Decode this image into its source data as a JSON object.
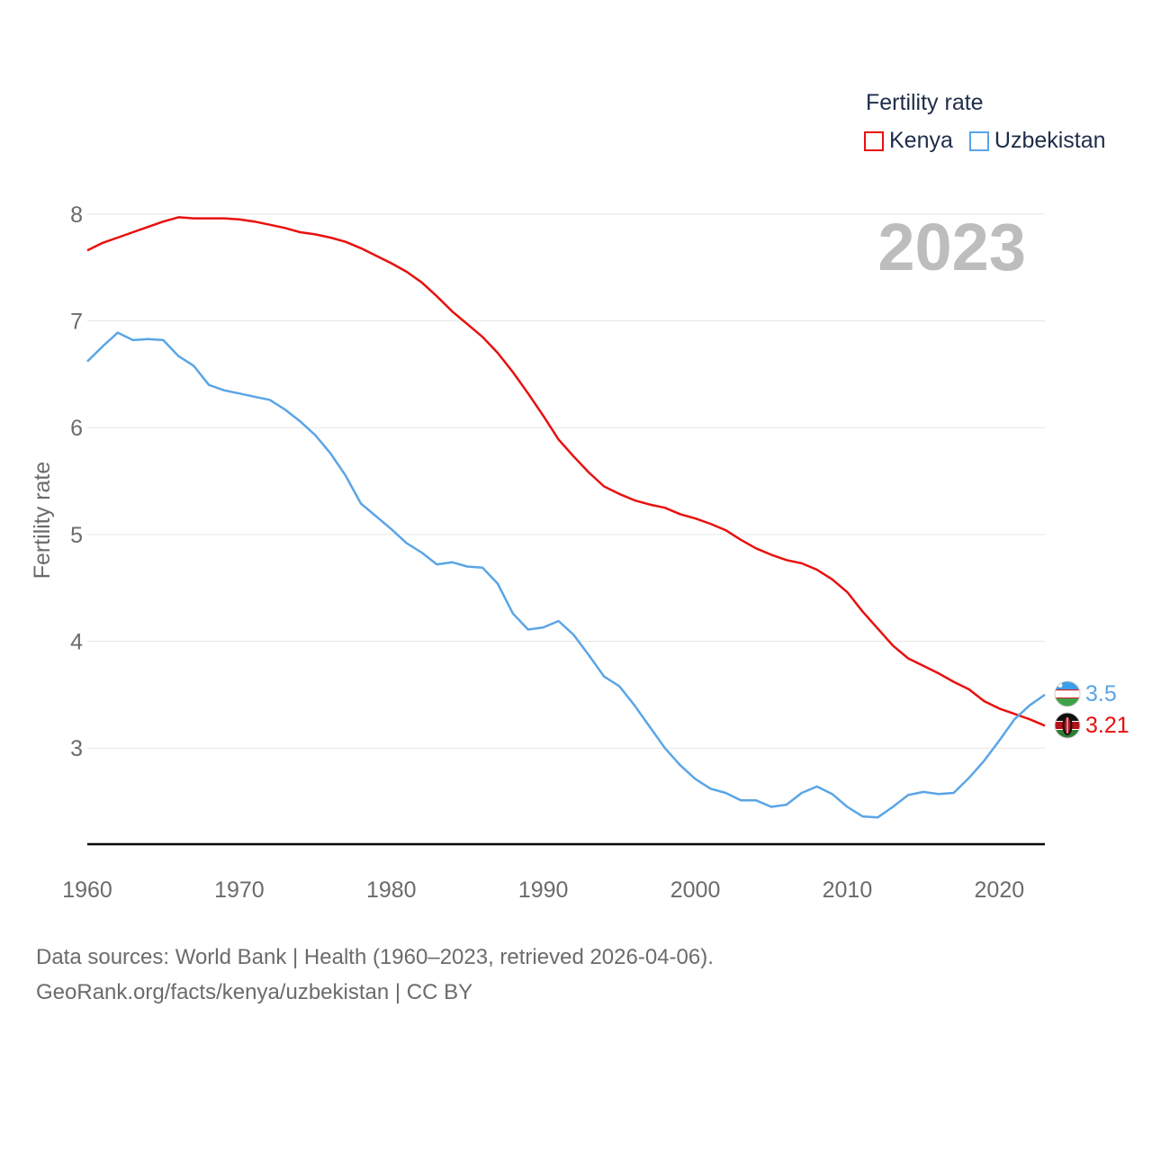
{
  "legend": {
    "title": "Fertility rate",
    "items": [
      {
        "label": "Kenya",
        "color": "#e8100e"
      },
      {
        "label": "Uzbekistan",
        "color": "#5aa5e6"
      }
    ]
  },
  "year_label": "2023",
  "footer": {
    "sources": "Data sources: World Bank | Health (1960–2023, retrieved 2026-04-06).",
    "link": "GeoRank.org/facts/kenya/uzbekistan | CC BY"
  },
  "chart_data": {
    "type": "line",
    "title": "Fertility rate",
    "xlabel": "",
    "ylabel": "Fertility rate",
    "xlim": [
      1960,
      2023
    ],
    "ylim": [
      2.1,
      8.1
    ],
    "yticks": [
      3,
      4,
      5,
      6,
      7,
      8
    ],
    "xticks": [
      1960,
      1970,
      1980,
      1990,
      2000,
      2010,
      2020
    ],
    "grid": true,
    "x": [
      1960,
      1961,
      1962,
      1963,
      1964,
      1965,
      1966,
      1967,
      1968,
      1969,
      1970,
      1971,
      1972,
      1973,
      1974,
      1975,
      1976,
      1977,
      1978,
      1979,
      1980,
      1981,
      1982,
      1983,
      1984,
      1985,
      1986,
      1987,
      1988,
      1989,
      1990,
      1991,
      1992,
      1993,
      1994,
      1995,
      1996,
      1997,
      1998,
      1999,
      2000,
      2001,
      2002,
      2003,
      2004,
      2005,
      2006,
      2007,
      2008,
      2009,
      2010,
      2011,
      2012,
      2013,
      2014,
      2015,
      2016,
      2017,
      2018,
      2019,
      2020,
      2021,
      2022,
      2023
    ],
    "series": [
      {
        "name": "Kenya",
        "color": "#e8100e",
        "end_label": "3.21",
        "values": [
          7.66,
          7.73,
          7.78,
          7.83,
          7.88,
          7.93,
          7.97,
          7.96,
          7.96,
          7.96,
          7.95,
          7.93,
          7.9,
          7.87,
          7.83,
          7.81,
          7.78,
          7.74,
          7.68,
          7.61,
          7.54,
          7.46,
          7.36,
          7.23,
          7.09,
          6.97,
          6.85,
          6.7,
          6.52,
          6.32,
          6.11,
          5.89,
          5.73,
          5.58,
          5.45,
          5.38,
          5.32,
          5.28,
          5.25,
          5.19,
          5.15,
          5.1,
          5.04,
          4.95,
          4.87,
          4.81,
          4.76,
          4.73,
          4.67,
          4.58,
          4.46,
          4.28,
          4.12,
          3.96,
          3.84,
          3.77,
          3.7,
          3.62,
          3.55,
          3.44,
          3.37,
          3.32,
          3.27,
          3.21
        ]
      },
      {
        "name": "Uzbekistan",
        "color": "#5aa5e6",
        "end_label": "3.5",
        "values": [
          6.62,
          6.76,
          6.89,
          6.82,
          6.83,
          6.82,
          6.67,
          6.58,
          6.4,
          6.35,
          6.32,
          6.29,
          6.26,
          6.17,
          6.06,
          5.93,
          5.76,
          5.55,
          5.29,
          5.17,
          5.05,
          4.92,
          4.83,
          4.72,
          4.74,
          4.7,
          4.69,
          4.54,
          4.26,
          4.11,
          4.13,
          4.19,
          4.06,
          3.87,
          3.67,
          3.58,
          3.4,
          3.2,
          3.0,
          2.84,
          2.71,
          2.62,
          2.58,
          2.51,
          2.51,
          2.45,
          2.47,
          2.58,
          2.64,
          2.57,
          2.45,
          2.36,
          2.35,
          2.45,
          2.56,
          2.59,
          2.57,
          2.58,
          2.72,
          2.88,
          3.07,
          3.27,
          3.4,
          3.5
        ]
      }
    ]
  }
}
